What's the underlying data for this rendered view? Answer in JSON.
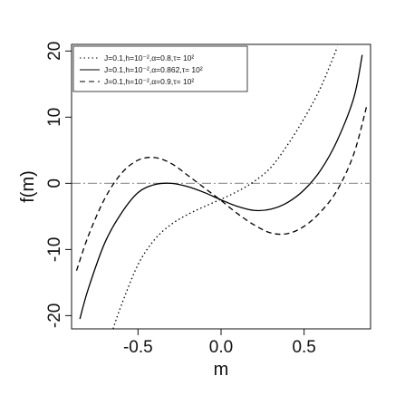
{
  "chart_data": {
    "type": "line",
    "title": "",
    "xlabel": "m",
    "ylabel": "f(m)",
    "xlim": [
      -0.9,
      0.9
    ],
    "ylim": [
      -22,
      21
    ],
    "xticks": [
      {
        "value": -0.5,
        "label": "-0.5"
      },
      {
        "value": 0.0,
        "label": "0.0"
      },
      {
        "value": 0.5,
        "label": "0.5"
      }
    ],
    "yticks": [
      {
        "value": -20,
        "label": "-20"
      },
      {
        "value": -10,
        "label": "-10"
      },
      {
        "value": 0,
        "label": "0"
      },
      {
        "value": 10,
        "label": "10"
      },
      {
        "value": 20,
        "label": "20"
      }
    ],
    "grid": false,
    "legend_position": "top-left",
    "reference_line": {
      "y": 0,
      "color": "#999999",
      "style": "dash-dot"
    },
    "series": [
      {
        "name": "J=0.1,h=10⁻²,α=0.8,τ= 10²",
        "style": "dotted",
        "color": "#000000",
        "x": [
          -0.65,
          -0.6,
          -0.5,
          -0.4,
          -0.3,
          -0.2,
          -0.1,
          0.0,
          0.1,
          0.2,
          0.3,
          0.4,
          0.5,
          0.6,
          0.7
        ],
        "y": [
          -22.0,
          -18.4,
          -12.3,
          -8.5,
          -6.2,
          -4.7,
          -3.5,
          -2.4,
          -1.2,
          0.3,
          2.4,
          5.8,
          9.8,
          14.5,
          20.6
        ]
      },
      {
        "name": "J=0.1,h=10⁻²,α=0.862,τ= 10²",
        "style": "solid",
        "color": "#000000",
        "x": [
          -0.85,
          -0.8,
          -0.7,
          -0.6,
          -0.5,
          -0.4,
          -0.3,
          -0.2,
          -0.1,
          0.0,
          0.1,
          0.2,
          0.3,
          0.4,
          0.5,
          0.6,
          0.7,
          0.8,
          0.85
        ],
        "y": [
          -20.5,
          -16.0,
          -9.0,
          -4.5,
          -1.4,
          -0.2,
          0.0,
          -0.5,
          -1.4,
          -2.5,
          -3.5,
          -4.1,
          -3.9,
          -2.9,
          -1.0,
          2.0,
          6.5,
          13.0,
          19.4
        ]
      },
      {
        "name": "J=0.1,h=10⁻²,α=0.9,τ= 10²",
        "style": "dashed",
        "color": "#000000",
        "x": [
          -0.87,
          -0.8,
          -0.7,
          -0.6,
          -0.5,
          -0.4,
          -0.3,
          -0.2,
          -0.1,
          0.0,
          0.1,
          0.2,
          0.3,
          0.4,
          0.5,
          0.6,
          0.7,
          0.8,
          0.88
        ],
        "y": [
          -13.2,
          -8.0,
          -2.3,
          1.5,
          3.5,
          3.9,
          3.0,
          1.2,
          -0.7,
          -2.6,
          -4.6,
          -6.3,
          -7.5,
          -7.6,
          -6.5,
          -4.3,
          -1.0,
          4.5,
          12.0
        ]
      }
    ]
  }
}
